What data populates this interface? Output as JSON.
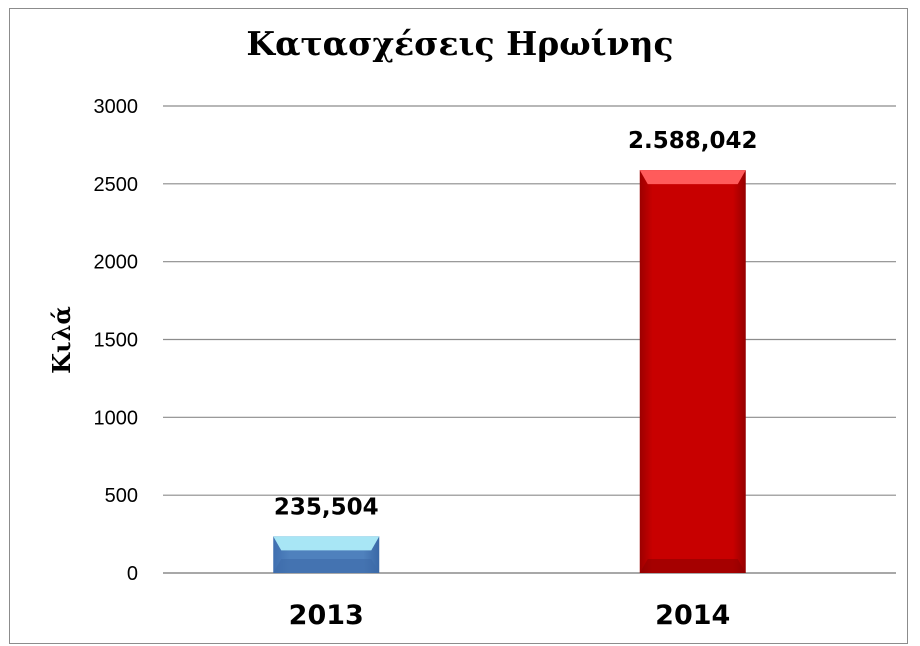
{
  "chart_data": {
    "type": "bar",
    "title": "Κατασχέσεις Ηρωίνης",
    "xlabel": "",
    "ylabel": "Κιλά",
    "categories": [
      "2013",
      "2014"
    ],
    "values": [
      235.504,
      2588.042
    ],
    "data_labels": [
      "235,504",
      "2.588,042"
    ],
    "ylim": [
      0,
      3000
    ],
    "yticks": [
      0,
      500,
      1000,
      1500,
      2000,
      2500,
      3000
    ],
    "grid": true,
    "legend": "none",
    "colors": [
      "#4f81bd",
      "#c00000"
    ]
  }
}
